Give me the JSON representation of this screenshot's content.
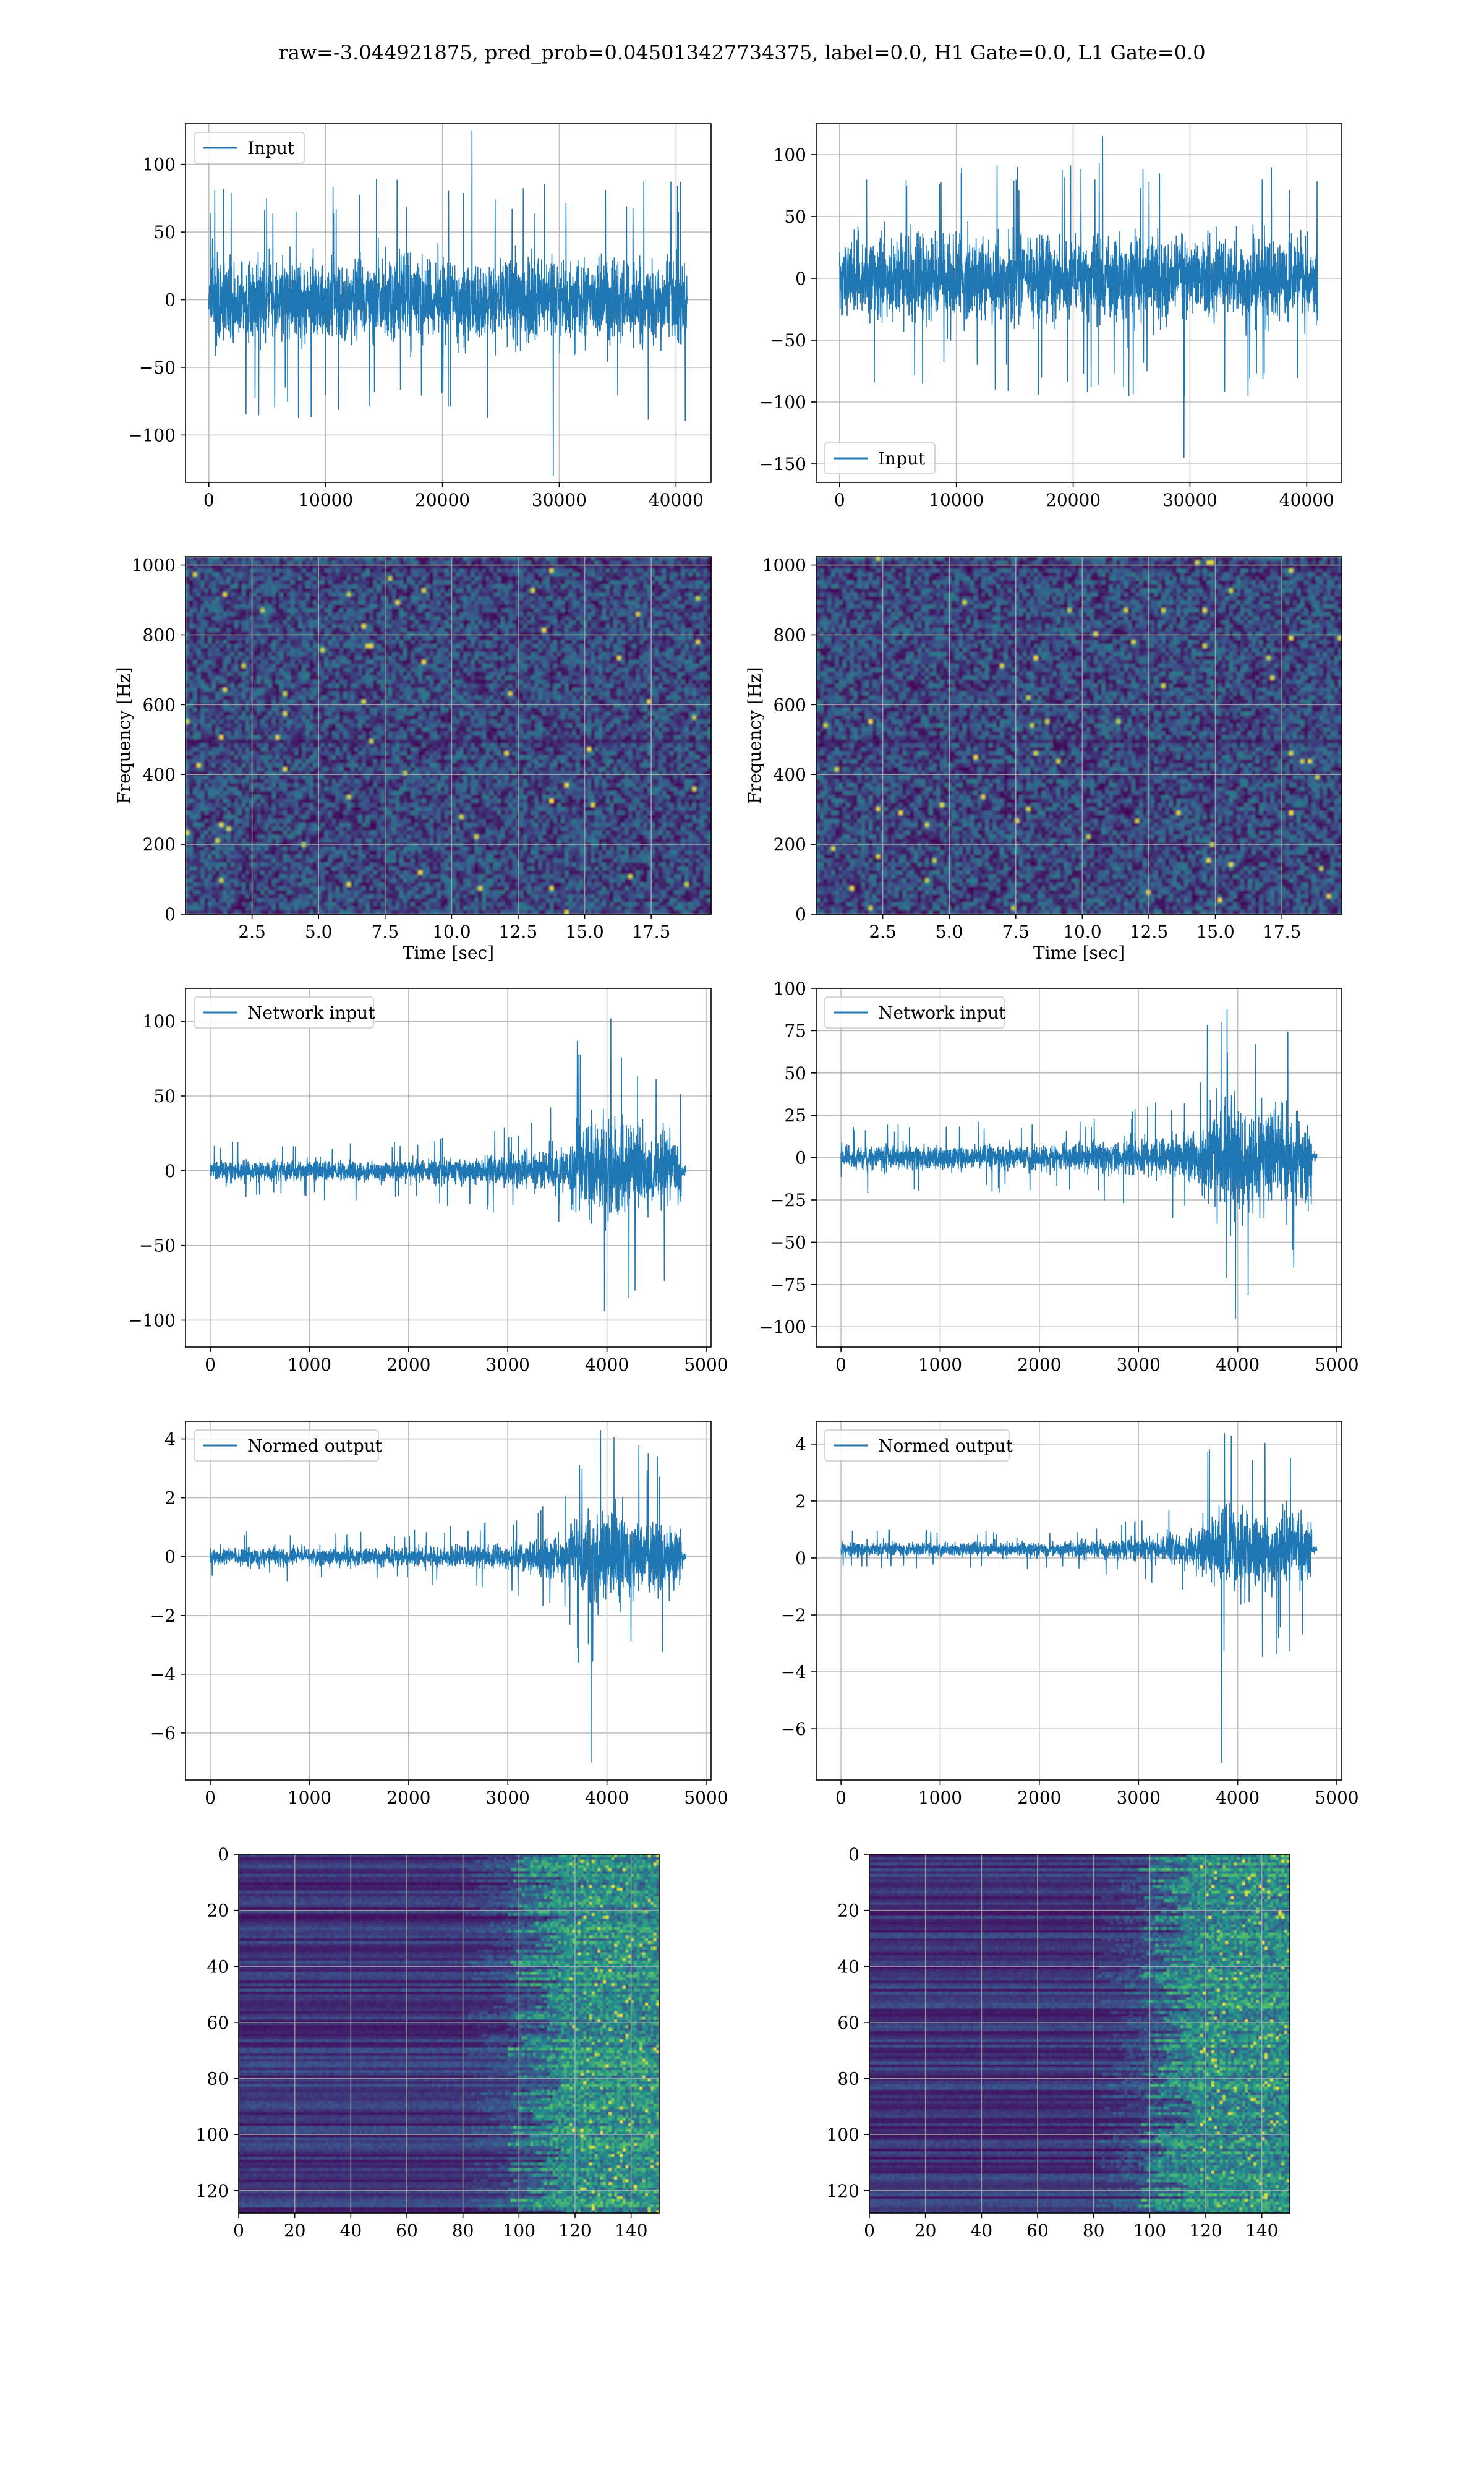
{
  "suptitle": "raw=-3.044921875, pred_prob=0.045013427734375, label=0.0, H1 Gate=0.0, L1 Gate=0.0",
  "chart_data": [
    {
      "id": "h1-input",
      "type": "line",
      "legend": [
        "Input"
      ],
      "legend_loc": "upper left",
      "color": "#1f77b4",
      "xlim": [
        -2000,
        43000
      ],
      "ylim": [
        -135,
        130
      ],
      "xticks": [
        0,
        10000,
        20000,
        30000,
        40000
      ],
      "yticks": [
        -100,
        -50,
        0,
        50,
        100
      ],
      "signal": {
        "n": 40960,
        "amplitude_envelope": [
          [
            0,
            75
          ],
          [
            40960,
            75
          ]
        ],
        "extremes": [
          125,
          -130
        ]
      },
      "grid": true
    },
    {
      "id": "l1-input",
      "type": "line",
      "legend": [
        "Input"
      ],
      "legend_loc": "lower left",
      "color": "#1f77b4",
      "xlim": [
        -2000,
        43000
      ],
      "ylim": [
        -165,
        125
      ],
      "xticks": [
        0,
        10000,
        20000,
        30000,
        40000
      ],
      "yticks": [
        -150,
        -100,
        -50,
        0,
        50,
        100
      ],
      "signal": {
        "n": 40960,
        "amplitude_envelope": [
          [
            0,
            80
          ],
          [
            40960,
            80
          ]
        ],
        "extremes": [
          115,
          -145
        ]
      },
      "grid": true
    },
    {
      "id": "h1-spectrogram",
      "type": "heatmap",
      "xlabel": "Time [sec]",
      "ylabel": "Frequency [Hz]",
      "xlim": [
        0,
        19.75
      ],
      "ylim": [
        0,
        1024
      ],
      "xticks": [
        2.5,
        5.0,
        7.5,
        10.0,
        12.5,
        15.0,
        17.5
      ],
      "yticks": [
        0,
        200,
        400,
        600,
        800,
        1000
      ],
      "colormap": "viridis",
      "grid": true
    },
    {
      "id": "l1-spectrogram",
      "type": "heatmap",
      "xlabel": "Time [sec]",
      "ylabel": "Frequency [Hz]",
      "xlim": [
        0,
        19.75
      ],
      "ylim": [
        0,
        1024
      ],
      "xticks": [
        2.5,
        5.0,
        7.5,
        10.0,
        12.5,
        15.0,
        17.5
      ],
      "yticks": [
        0,
        200,
        400,
        600,
        800,
        1000
      ],
      "colormap": "viridis",
      "grid": true
    },
    {
      "id": "h1-network-input",
      "type": "line",
      "legend": [
        "Network input"
      ],
      "legend_loc": "upper left",
      "color": "#1f77b4",
      "xlim": [
        -250,
        5050
      ],
      "ylim": [
        -118,
        122
      ],
      "xticks": [
        0,
        1000,
        2000,
        3000,
        4000,
        5000
      ],
      "yticks": [
        -100,
        -50,
        0,
        50,
        100
      ],
      "signal": {
        "n": 4800,
        "amplitude_envelope": [
          [
            0,
            17
          ],
          [
            2000,
            17
          ],
          [
            3000,
            25
          ],
          [
            3600,
            40
          ],
          [
            3700,
            75
          ],
          [
            4000,
            90
          ],
          [
            4300,
            70
          ],
          [
            4750,
            60
          ]
        ],
        "tail": [
          4750,
          4800
        ],
        "tail_amplitude": 3
      },
      "grid": true
    },
    {
      "id": "l1-network-input",
      "type": "line",
      "legend": [
        "Network input"
      ],
      "legend_loc": "upper left",
      "color": "#1f77b4",
      "xlim": [
        -250,
        5050
      ],
      "ylim": [
        -112,
        100
      ],
      "xticks": [
        0,
        1000,
        2000,
        3000,
        4000,
        5000
      ],
      "yticks": [
        -100,
        -75,
        -50,
        -25,
        0,
        25,
        50,
        75,
        100
      ],
      "signal": {
        "n": 4800,
        "amplitude_envelope": [
          [
            0,
            18
          ],
          [
            2200,
            18
          ],
          [
            3000,
            25
          ],
          [
            3600,
            35
          ],
          [
            3700,
            70
          ],
          [
            3900,
            85
          ],
          [
            4300,
            70
          ],
          [
            4750,
            60
          ]
        ],
        "tail": [
          4750,
          4800
        ],
        "tail_amplitude": 3
      },
      "grid": true
    },
    {
      "id": "h1-normed-output",
      "type": "line",
      "legend": [
        "Normed output"
      ],
      "legend_loc": "upper left",
      "color": "#1f77b4",
      "xlim": [
        -250,
        5050
      ],
      "ylim": [
        -7.6,
        4.6
      ],
      "xticks": [
        0,
        1000,
        2000,
        3000,
        4000,
        5000
      ],
      "yticks": [
        -6,
        -4,
        -2,
        0,
        2,
        4
      ],
      "signal": {
        "n": 4800,
        "amplitude_envelope": [
          [
            0,
            0.75
          ],
          [
            2000,
            0.75
          ],
          [
            3000,
            1.1
          ],
          [
            3600,
            1.8
          ],
          [
            3700,
            3.2
          ],
          [
            4000,
            4.0
          ],
          [
            4300,
            3.2
          ],
          [
            4750,
            2.7
          ]
        ],
        "tail": [
          4750,
          4800
        ],
        "tail_amplitude": 0.15,
        "extremes": [
          4.3,
          -7.0
        ]
      },
      "grid": true
    },
    {
      "id": "l1-normed-output",
      "type": "line",
      "legend": [
        "Normed output"
      ],
      "legend_loc": "upper left",
      "color": "#1f77b4",
      "xlim": [
        -250,
        5050
      ],
      "ylim": [
        -7.8,
        4.8
      ],
      "xticks": [
        0,
        1000,
        2000,
        3000,
        4000,
        5000
      ],
      "yticks": [
        -6,
        -4,
        -2,
        0,
        2,
        4
      ],
      "signal": {
        "n": 4800,
        "amplitude_envelope": [
          [
            0,
            0.6
          ],
          [
            2200,
            0.6
          ],
          [
            3000,
            0.9
          ],
          [
            3600,
            1.5
          ],
          [
            3700,
            3.0
          ],
          [
            3900,
            3.8
          ],
          [
            4300,
            3.2
          ],
          [
            4750,
            2.8
          ]
        ],
        "offset": 0.3,
        "tail": [
          4750,
          4800
        ],
        "tail_amplitude": 0.15,
        "extremes": [
          4.3,
          -7.2
        ]
      },
      "grid": true
    },
    {
      "id": "h1-qtransform",
      "type": "heatmap",
      "xlim": [
        0,
        150
      ],
      "ylim": [
        128,
        0
      ],
      "xticks": [
        0,
        20,
        40,
        60,
        80,
        100,
        120,
        140
      ],
      "yticks": [
        0,
        20,
        40,
        60,
        80,
        100,
        120
      ],
      "colormap": "viridis",
      "grid": true
    },
    {
      "id": "l1-qtransform",
      "type": "heatmap",
      "xlim": [
        0,
        150
      ],
      "ylim": [
        128,
        0
      ],
      "xticks": [
        0,
        20,
        40,
        60,
        80,
        100,
        120,
        140
      ],
      "yticks": [
        0,
        20,
        40,
        60,
        80,
        100,
        120
      ],
      "colormap": "viridis",
      "grid": true
    }
  ]
}
